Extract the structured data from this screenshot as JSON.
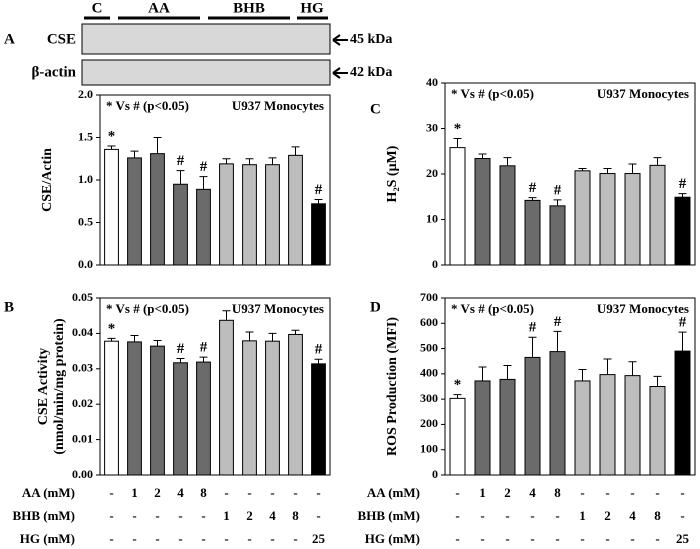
{
  "blot": {
    "panel": "A",
    "groups": [
      "C",
      "AA",
      "BHB",
      "HG"
    ],
    "rows": [
      {
        "label": "CSE",
        "size": "45 kDa"
      },
      {
        "label": "β-actin",
        "size": "42 kDa"
      }
    ]
  },
  "treatments": [
    {
      "label": "AA (mM)",
      "values": [
        "-",
        "1",
        "2",
        "4",
        "8",
        "-",
        "-",
        "-",
        "-",
        "-"
      ]
    },
    {
      "label": "BHB (mM)",
      "values": [
        "-",
        "-",
        "-",
        "-",
        "-",
        "1",
        "2",
        "4",
        "8",
        "-"
      ]
    },
    {
      "label": "HG (mM)",
      "values": [
        "-",
        "-",
        "-",
        "-",
        "-",
        "-",
        "-",
        "-",
        "-",
        "25"
      ]
    }
  ],
  "chart_data": [
    {
      "type": "bar",
      "panel": null,
      "annotation": "* Vs # (p<0.05)",
      "subtitle": "U937 Monocytes",
      "ylabel": [
        "CSE/Actin"
      ],
      "colors": [
        "#ffffff",
        "#6b6b6b",
        "#6b6b6b",
        "#6b6b6b",
        "#6b6b6b",
        "#bdbdbd",
        "#bdbdbd",
        "#bdbdbd",
        "#bdbdbd",
        "#000000"
      ],
      "values": [
        1.36,
        1.26,
        1.31,
        0.95,
        0.89,
        1.19,
        1.18,
        1.18,
        1.29,
        0.72
      ],
      "errors": [
        0.04,
        0.08,
        0.19,
        0.16,
        0.15,
        0.06,
        0.07,
        0.08,
        0.1,
        0.05
      ],
      "markers": [
        "*",
        null,
        null,
        "#",
        "#",
        null,
        null,
        null,
        null,
        "#"
      ],
      "ylim": [
        0,
        2
      ],
      "yticks": [
        {
          "value": 0,
          "label": "0.0"
        },
        {
          "value": 0.5,
          "label": "0.5"
        },
        {
          "value": 1,
          "label": "1.0"
        },
        {
          "value": 1.5,
          "label": "1.5"
        },
        {
          "value": 2,
          "label": "2.0"
        }
      ]
    },
    {
      "type": "bar",
      "panel": "C",
      "annotation": "* Vs # (p<0.05)",
      "subtitle": "U937 Monocytes",
      "ylabel": [
        "H₂S (μM)"
      ],
      "colors": [
        "#ffffff",
        "#6b6b6b",
        "#6b6b6b",
        "#6b6b6b",
        "#6b6b6b",
        "#bdbdbd",
        "#bdbdbd",
        "#bdbdbd",
        "#bdbdbd",
        "#000000"
      ],
      "values": [
        25.8,
        23.4,
        21.8,
        14.2,
        13,
        20.7,
        20.1,
        20.1,
        21.9,
        14.9
      ],
      "errors": [
        2,
        1,
        1.8,
        0.6,
        1.3,
        0.5,
        1.1,
        2.1,
        1.7,
        0.8
      ],
      "markers": [
        "*",
        null,
        null,
        "#",
        "#",
        null,
        null,
        null,
        null,
        "#"
      ],
      "ylim": [
        0,
        40
      ],
      "yticks": [
        0,
        10,
        20,
        30,
        40
      ]
    },
    {
      "type": "bar",
      "panel": "B",
      "annotation": "* Vs # (p<0.05)",
      "subtitle": "U937 Monocytes",
      "ylabel": [
        "CSE Activity",
        "(nmol/min/mg protein)"
      ],
      "colors": [
        "#ffffff",
        "#6b6b6b",
        "#6b6b6b",
        "#6b6b6b",
        "#6b6b6b",
        "#bdbdbd",
        "#bdbdbd",
        "#bdbdbd",
        "#bdbdbd",
        "#000000"
      ],
      "values": [
        0.0378,
        0.0376,
        0.0364,
        0.0317,
        0.0319,
        0.0437,
        0.0379,
        0.0378,
        0.0397,
        0.0314
      ],
      "errors": [
        0.0008,
        0.0018,
        0.0016,
        0.0012,
        0.0014,
        0.0027,
        0.0025,
        0.0022,
        0.0012,
        0.0013
      ],
      "markers": [
        "*",
        null,
        null,
        "#",
        "#",
        null,
        null,
        null,
        null,
        "#"
      ],
      "ylim": [
        0,
        0.05
      ],
      "yticks": [
        {
          "value": 0,
          "label": "0.00"
        },
        {
          "value": 0.01,
          "label": "0.01"
        },
        {
          "value": 0.02,
          "label": "0.02"
        },
        {
          "value": 0.03,
          "label": "0.03"
        },
        {
          "value": 0.04,
          "label": "0.04"
        },
        {
          "value": 0.05,
          "label": "0.05"
        }
      ]
    },
    {
      "type": "bar",
      "panel": "D",
      "annotation": "* Vs # (p<0.05)",
      "subtitle": "U937 Monocytes",
      "ylabel": [
        "ROS Production (MFI)"
      ],
      "colors": [
        "#ffffff",
        "#6b6b6b",
        "#6b6b6b",
        "#6b6b6b",
        "#6b6b6b",
        "#bdbdbd",
        "#bdbdbd",
        "#bdbdbd",
        "#bdbdbd",
        "#000000"
      ],
      "values": [
        303,
        372,
        378,
        465,
        488,
        372,
        397,
        393,
        350,
        490
      ],
      "errors": [
        15,
        55,
        55,
        80,
        80,
        45,
        62,
        55,
        40,
        75
      ],
      "markers": [
        "*",
        null,
        null,
        "#",
        "#",
        null,
        null,
        null,
        null,
        "#"
      ],
      "ylim": [
        0,
        700
      ],
      "yticks": [
        0,
        100,
        200,
        300,
        400,
        500,
        600,
        700
      ]
    }
  ]
}
